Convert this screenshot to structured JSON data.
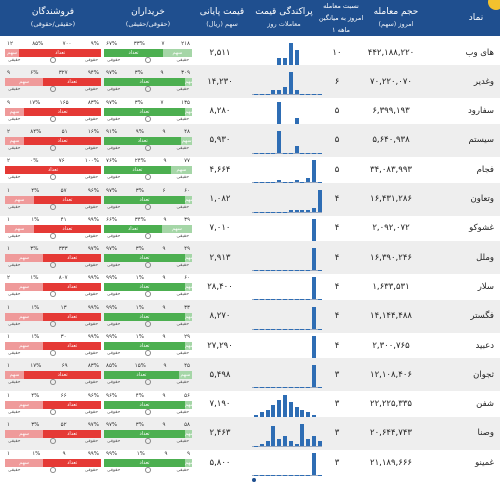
{
  "header": {
    "col_name": "نماد",
    "col_volume": "حجم معامله",
    "col_volume_sub": "امروز (سهم)",
    "col_ratio_1": "نسبت معامله",
    "col_ratio_2": "امروز به میانگین",
    "col_ratio_3": "۱ ماهه",
    "col_hist": "پراکندگی قیمت",
    "col_hist_sub": "معاملات روز",
    "col_price": "قیمت پایانی",
    "col_price_sub": "سهم (ریال)",
    "col_buyers": "خریداران",
    "col_buyers_sub": "(حقوقی/حقیقی)",
    "col_sellers": "فروشندگان",
    "col_sellers_sub": "(حقیقی/حقوقی)"
  },
  "labels": {
    "real": "حقیقی",
    "legal": "حقوقی",
    "count": "تعداد",
    "shares": "سهم"
  },
  "rows": [
    {
      "name": "های وب",
      "volume": "۴۴۲,۱۸۸,۲۲۰",
      "ratio": "۱۰",
      "price": "۲,۵۱۱",
      "hist": [
        0,
        0,
        0,
        0,
        1,
        1,
        3,
        2,
        0,
        0,
        0,
        0
      ],
      "buy": {
        "real": "۶۷%",
        "legal": "۳۳%",
        "mid": "۷",
        "left": "۲۱۸",
        "g": 67
      },
      "sell": {
        "a": "۹%",
        "b": "۸۵%",
        "c": "۷۰۰",
        "d": "۱۲",
        "r": 85
      }
    },
    {
      "name": "وغدیر",
      "volume": "۷۰,۲۲۰,۰۷۰",
      "ratio": "۶",
      "price": "۱۴,۲۳۰",
      "hist": [
        0,
        0,
        0,
        1,
        1,
        2,
        6,
        1,
        0,
        0,
        0,
        0
      ],
      "buy": {
        "real": "۹۷%",
        "legal": "۳%",
        "mid": "۹",
        "left": "۳۰۹",
        "g": 92
      },
      "sell": {
        "a": "۹۴%",
        "b": "۶%",
        "c": "۳۲۷",
        "d": "۹",
        "r": 60
      }
    },
    {
      "name": "سفارود",
      "volume": "۶,۳۹۹,۱۹۳",
      "ratio": "۵",
      "price": "۸,۲۸۰",
      "hist": [
        0,
        0,
        0,
        0,
        14,
        0,
        0,
        4,
        0,
        0,
        0,
        0
      ],
      "buy": {
        "real": "۹۷%",
        "legal": "۳%",
        "mid": "۷",
        "left": "۱۳۵",
        "g": 92
      },
      "sell": {
        "a": "۸۳%",
        "b": "۱۷%",
        "c": "۱۶۵",
        "d": "۹",
        "r": 80
      }
    },
    {
      "name": "سیستم",
      "volume": "۵,۶۴۰,۹۳۸",
      "ratio": "۵",
      "price": "۵,۹۳۰",
      "hist": [
        0,
        0,
        0,
        0,
        12,
        0,
        0,
        4,
        0,
        0,
        0,
        0
      ],
      "buy": {
        "real": "۹۱%",
        "legal": "۹%",
        "mid": "۹",
        "left": "۴۸",
        "g": 88
      },
      "sell": {
        "a": "۱۶%",
        "b": "۸۴%",
        "c": "۵۱",
        "d": "۲",
        "r": 80
      }
    },
    {
      "name": "فجام",
      "volume": "۳۴,۰۸۳,۹۹۳",
      "ratio": "۵",
      "price": "۴,۶۶۴",
      "hist": [
        0,
        0,
        0,
        0,
        1,
        0,
        0,
        1,
        0,
        2,
        12,
        0
      ],
      "buy": {
        "real": "۷۶%",
        "legal": "۲۴%",
        "mid": "۹",
        "left": "۷۷",
        "g": 76
      },
      "sell": {
        "a": "۱۰۰%",
        "b": "۰%",
        "c": "۷۶",
        "d": "۲",
        "r": 100
      }
    },
    {
      "name": "وتعاون",
      "volume": "۱۶,۴۳۱,۲۸۶",
      "ratio": "۴",
      "price": "۱,۰۸۲",
      "hist": [
        0,
        0,
        0,
        0,
        0,
        0,
        1,
        1,
        1,
        1,
        2,
        10
      ],
      "buy": {
        "real": "۹۷%",
        "legal": "۳%",
        "mid": "۶",
        "left": "۶۰",
        "g": 92
      },
      "sell": {
        "a": "۹۶%",
        "b": "۴%",
        "c": "۵۷",
        "d": "۱",
        "r": 70
      }
    },
    {
      "name": "غشوکو",
      "volume": "۲,۰۹۲,۰۷۲",
      "ratio": "۴",
      "price": "۷,۰۱۰",
      "hist": [
        0,
        0,
        0,
        0,
        0,
        0,
        0,
        0,
        0,
        0,
        8,
        0
      ],
      "buy": {
        "real": "۶۶%",
        "legal": "۳۴%",
        "mid": "۹",
        "left": "۳۹",
        "g": 66
      },
      "sell": {
        "a": "۹۹%",
        "b": "۱%",
        "c": "۴۱",
        "d": "۱",
        "r": 70
      }
    },
    {
      "name": "وملل",
      "volume": "۱۶,۳۹۰,۲۴۶",
      "ratio": "۴",
      "price": "۲,۹۱۳",
      "hist": [
        0,
        0,
        0,
        0,
        0,
        0,
        0,
        0,
        0,
        0,
        10,
        0
      ],
      "buy": {
        "real": "۹۷%",
        "legal": "۳%",
        "mid": "۹",
        "left": "۴۹",
        "g": 92
      },
      "sell": {
        "a": "۹۷%",
        "b": "۳%",
        "c": "۳۳۳",
        "d": "۱",
        "r": 60
      }
    },
    {
      "name": "سلار",
      "volume": "۱,۶۳۳,۵۳۱",
      "ratio": "۴",
      "price": "۲۸,۴۰۰",
      "hist": [
        0,
        0,
        0,
        0,
        0,
        0,
        0,
        0,
        0,
        0,
        12,
        0
      ],
      "buy": {
        "real": "۹۹%",
        "legal": "۱%",
        "mid": "۹",
        "left": "۶۰",
        "g": 92
      },
      "sell": {
        "a": "۹۹%",
        "b": "۱%",
        "c": "۸۰۷",
        "d": "۲",
        "r": 60
      }
    },
    {
      "name": "فگستر",
      "volume": "۱۴,۱۴۴,۴۸۸",
      "ratio": "۴",
      "price": "۸,۲۷۰",
      "hist": [
        0,
        0,
        0,
        0,
        0,
        0,
        0,
        0,
        0,
        0,
        8,
        0
      ],
      "buy": {
        "real": "۹۹%",
        "legal": "۱%",
        "mid": "۹",
        "left": "۳۳",
        "g": 92
      },
      "sell": {
        "a": "۹۹%",
        "b": "۱%",
        "c": "۱۳",
        "d": "۱",
        "r": 60
      }
    },
    {
      "name": "دعبید",
      "volume": "۲,۳۰۰,۷۶۵",
      "ratio": "۴",
      "price": "۲۷,۲۹۰",
      "hist": [
        0,
        0,
        0,
        0,
        0,
        0,
        0,
        0,
        0,
        0,
        14,
        0
      ],
      "buy": {
        "real": "۹۹%",
        "legal": "۱%",
        "mid": "۹",
        "left": "۲۹",
        "g": 92
      },
      "sell": {
        "a": "۹۹%",
        "b": "۱%",
        "c": "۳۰",
        "d": "۱",
        "r": 60
      }
    },
    {
      "name": "ثجوان",
      "volume": "۱۲,۱۰۸,۴۰۶",
      "ratio": "۳",
      "price": "۵,۴۹۸",
      "hist": [
        0,
        0,
        0,
        0,
        0,
        0,
        0,
        0,
        0,
        0,
        14,
        0
      ],
      "buy": {
        "real": "۸۵%",
        "legal": "۱۵%",
        "mid": "۹",
        "left": "۴۵",
        "g": 85
      },
      "sell": {
        "a": "۸۳%",
        "b": "۱۷%",
        "c": "۶۹",
        "d": "۱",
        "r": 80
      }
    },
    {
      "name": "شفن",
      "volume": "۲۲,۲۲۵,۳۳۵",
      "ratio": "۳",
      "price": "۷,۱۹۰",
      "hist": [
        1,
        2,
        3,
        5,
        7,
        9,
        6,
        4,
        3,
        2,
        1,
        0
      ],
      "buy": {
        "real": "۹۶%",
        "legal": "۴%",
        "mid": "۹",
        "left": "۵۶",
        "g": 92
      },
      "sell": {
        "a": "۹۶%",
        "b": "۴%",
        "c": "۶۶",
        "d": "۱",
        "r": 60
      }
    },
    {
      "name": "وصنا",
      "volume": "۲۰,۶۴۴,۷۴۳",
      "ratio": "۳",
      "price": "۲,۴۶۳",
      "hist": [
        0,
        1,
        2,
        8,
        3,
        4,
        2,
        1,
        9,
        3,
        4,
        2
      ],
      "buy": {
        "real": "۹۷%",
        "legal": "۳%",
        "mid": "۹",
        "left": "۵۸",
        "g": 92
      },
      "sell": {
        "a": "۹۷%",
        "b": "۳%",
        "c": "۵۲",
        "d": "۱",
        "r": 60
      }
    },
    {
      "name": "غمینو",
      "volume": "۲۱,۱۸۹,۶۶۶",
      "ratio": "۳",
      "price": "۵,۸۰۰",
      "hist": [
        0,
        0,
        0,
        0,
        0,
        0,
        0,
        0,
        0,
        0,
        10,
        0
      ],
      "buy": {
        "real": "۹۹%",
        "legal": "۱%",
        "mid": "۹",
        "left": "۹",
        "g": 92
      },
      "sell": {
        "a": "۹۹%",
        "b": "۱%",
        "c": "۹",
        "d": "۱",
        "r": 60
      }
    }
  ],
  "colors": {
    "header_bg": "#1f4f8f",
    "bar": "#2e6db4",
    "green": "#4caf50",
    "red": "#e53935"
  }
}
